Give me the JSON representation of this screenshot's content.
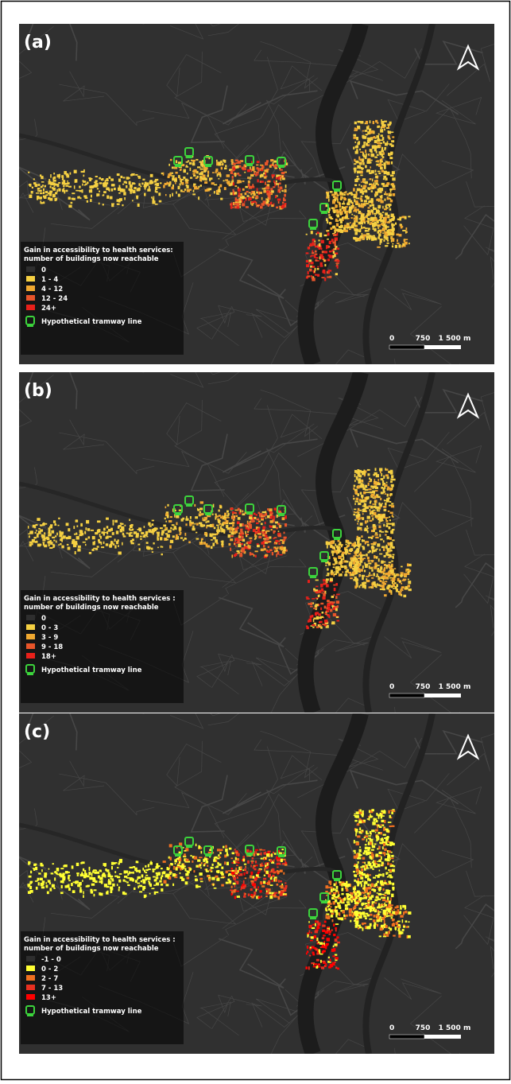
{
  "panels": [
    {
      "label": "(a)",
      "legend": {
        "title": [
          "Gain in accessibility to health services:",
          "number of buildings now reachable"
        ],
        "items": [
          {
            "label": "0",
            "color": "#2e2e2e"
          },
          {
            "label": "1 - 4",
            "color": "#f5d042"
          },
          {
            "label": "4 - 12",
            "color": "#f0a830"
          },
          {
            "label": "12 - 24",
            "color": "#e8552a"
          },
          {
            "label": "24+",
            "color": "#e8201a"
          }
        ],
        "tram": "Hypothetical tramway line"
      },
      "scale": [
        "0",
        "750",
        "1 500 m"
      ]
    },
    {
      "label": "(b)",
      "legend": {
        "title": [
          "Gain in accessibility to health services :",
          "number of buildings now reachable"
        ],
        "items": [
          {
            "label": "0",
            "color": "#2e2e2e"
          },
          {
            "label": "0 - 3",
            "color": "#f5d042"
          },
          {
            "label": "3 - 9",
            "color": "#f0a830"
          },
          {
            "label": "9 - 18",
            "color": "#e8552a"
          },
          {
            "label": "18+",
            "color": "#e8201a"
          }
        ],
        "tram": "Hypothetical tramway line"
      },
      "scale": [
        "0",
        "750",
        "1 500 m"
      ]
    },
    {
      "label": "(c)",
      "legend": {
        "title": [
          "Gain in accessibility to health services :",
          "number of buildings now reachable"
        ],
        "items": [
          {
            "label": "-1 - 0",
            "color": "#2e2e2e"
          },
          {
            "label": "0 - 2",
            "color": "#ffff33"
          },
          {
            "label": "2 - 7",
            "color": "#f07020"
          },
          {
            "label": "7 - 13",
            "color": "#e83020"
          },
          {
            "label": "13+",
            "color": "#ff0000"
          }
        ],
        "tram": "Hypothetical tramway line"
      },
      "scale": [
        "0",
        "750",
        "1 500 m"
      ]
    }
  ]
}
